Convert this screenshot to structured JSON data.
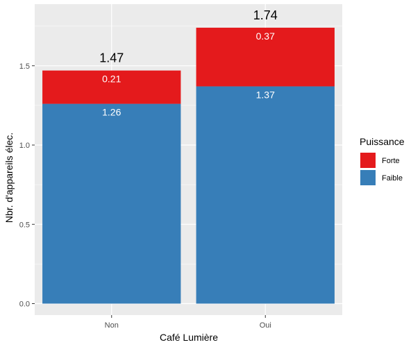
{
  "chart_data": {
    "type": "bar",
    "stacked": true,
    "xlabel": "Café Lumière",
    "ylabel": "Nbr. d'appareils élec.",
    "categories": [
      "Non",
      "Oui"
    ],
    "ylim": [
      0,
      1.8
    ],
    "yticks": [
      {
        "value": 0.0,
        "label": "0.0"
      },
      {
        "value": 0.5,
        "label": "0.5"
      },
      {
        "value": 1.0,
        "label": "1.0"
      },
      {
        "value": 1.5,
        "label": "1.5"
      }
    ],
    "grid": true,
    "series": [
      {
        "name": "Faible",
        "color": "#377EB8",
        "values": [
          1.26,
          1.37
        ],
        "labels": [
          "1.26",
          "1.37"
        ]
      },
      {
        "name": "Forte",
        "color": "#E41A1C",
        "values": [
          0.21,
          0.37
        ],
        "labels": [
          "0.21",
          "0.37"
        ]
      }
    ],
    "totals": [
      "1.47",
      "1.74"
    ],
    "legend": {
      "title": "Puissance",
      "position": "right",
      "entries": [
        {
          "label": "Forte",
          "color": "#E41A1C"
        },
        {
          "label": "Faible",
          "color": "#377EB8"
        }
      ]
    }
  }
}
